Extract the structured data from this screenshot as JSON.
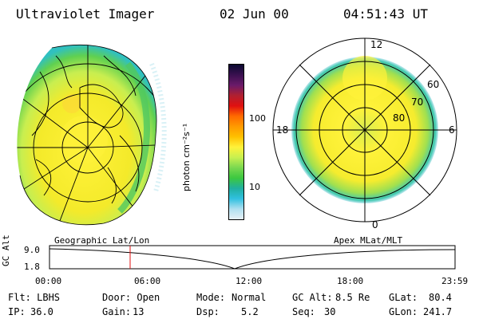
{
  "header": {
    "instrument": "Ultraviolet Imager",
    "date": "02 Jun 00",
    "time": "04:51:43 UT"
  },
  "left_map": {
    "caption": "Geographic Lat/Lon"
  },
  "right_map": {
    "caption": "Apex MLat/MLT",
    "mlt_labels": [
      "12",
      "18",
      "6",
      "0"
    ],
    "mlat_labels": [
      "60",
      "70",
      "80"
    ]
  },
  "colorbar": {
    "unit_label": "photon cm⁻²s⁻¹",
    "ticks": [
      "100",
      "10"
    ],
    "colors_top_to_bottom": [
      "#0a0a30",
      "#3a1050",
      "#6a1a6a",
      "#b02030",
      "#e01010",
      "#ff6a00",
      "#ff9a00",
      "#ffc000",
      "#fff23a",
      "#c8f050",
      "#7ad850",
      "#3cc840",
      "#20b0a0",
      "#30c0e0",
      "#b0e0f0",
      "#e6f0f6"
    ]
  },
  "altitude_track": {
    "ylabel": "GC Alt",
    "y_ticks": [
      "9.0",
      "1.8"
    ],
    "x_ticks": [
      "00:00",
      "06:00",
      "12:00",
      "18:00",
      "23:59"
    ],
    "current_time_marker": "04:51:43"
  },
  "info": {
    "flt": "Flt: LBHS",
    "door": "Door: Open",
    "mode_label": "Mode:",
    "mode_value": "Normal",
    "gcalt_label": "GC Alt:",
    "gcalt_value": "8.5 Re",
    "glat_label": "GLat:",
    "glat_value": "80.4",
    "ip_label": "IP:",
    "ip_value": "36.0",
    "gain_label": "Gain:",
    "gain_value": "13",
    "dsp_label": "Dsp:",
    "dsp_value": "5.2",
    "seq_label": "Seq:",
    "seq_value": "30",
    "glon_label": "GLon:",
    "glon_value": "241.7"
  }
}
